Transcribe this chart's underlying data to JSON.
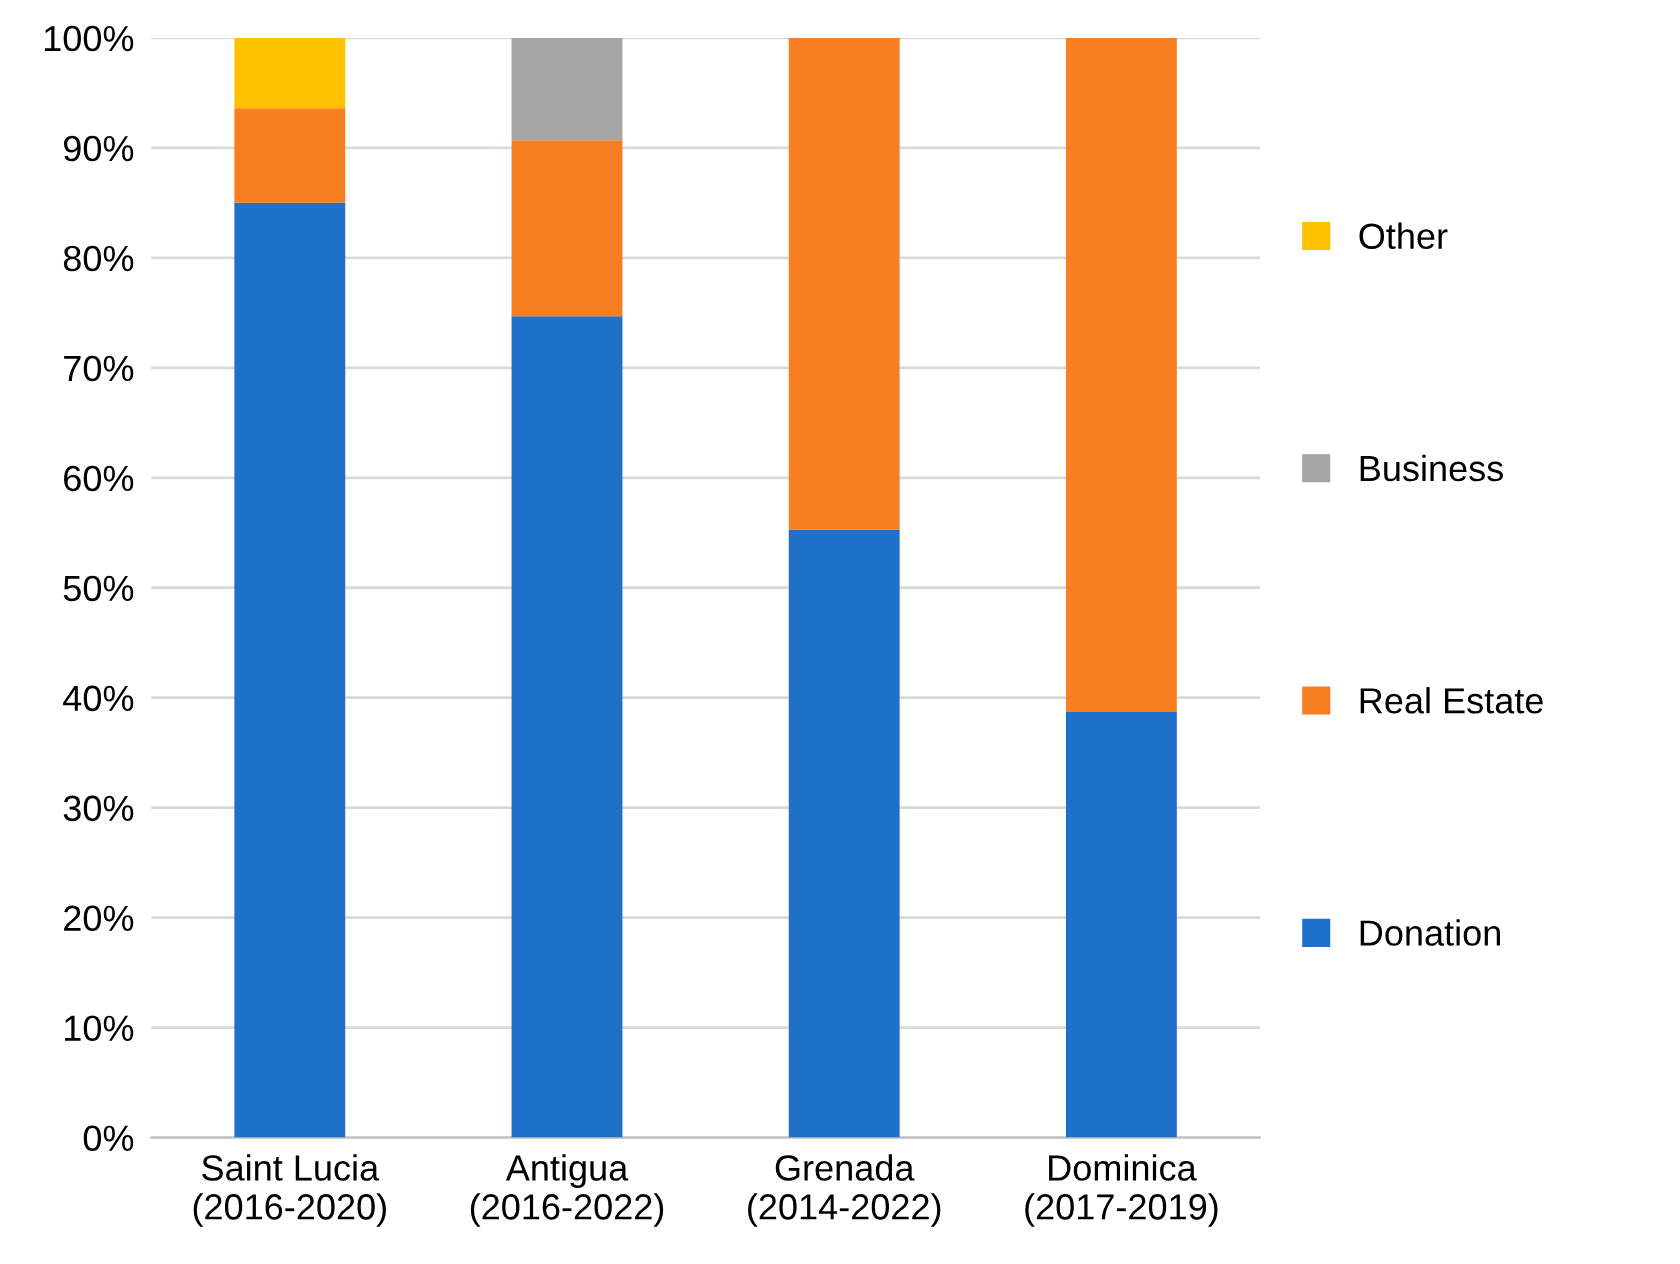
{
  "chart_data": {
    "type": "bar",
    "stacked": true,
    "categories": [
      "Saint Lucia\n(2016-2020)",
      "Antigua\n(2016-2022)",
      "Grenada\n(2014-2022)",
      "Dominica\n(2017-2019)"
    ],
    "series": [
      {
        "name": "Donation",
        "color": "#1f70c8",
        "values": [
          85,
          74.7,
          55.3,
          38.7
        ]
      },
      {
        "name": "Real Estate",
        "color": "#f77f22",
        "values": [
          8.6,
          16,
          44.7,
          61.3
        ]
      },
      {
        "name": "Business",
        "color": "#a5a5a5",
        "values": [
          0,
          9.3,
          0,
          0
        ]
      },
      {
        "name": "Other",
        "color": "#ffc000",
        "values": [
          6.4,
          0,
          0,
          0
        ]
      }
    ],
    "ylim": [
      0,
      100
    ],
    "yticks": [
      {
        "value": 0,
        "label": "0%"
      },
      {
        "value": 10,
        "label": "10%"
      },
      {
        "value": 20,
        "label": "20%"
      },
      {
        "value": 30,
        "label": "30%"
      },
      {
        "value": 40,
        "label": "40%"
      },
      {
        "value": 50,
        "label": "50%"
      },
      {
        "value": 60,
        "label": "60%"
      },
      {
        "value": 70,
        "label": "70%"
      },
      {
        "value": 80,
        "label": "80%"
      },
      {
        "value": 90,
        "label": "90%"
      },
      {
        "value": 100,
        "label": "100%"
      }
    ],
    "grid": "y",
    "legend": "right"
  }
}
